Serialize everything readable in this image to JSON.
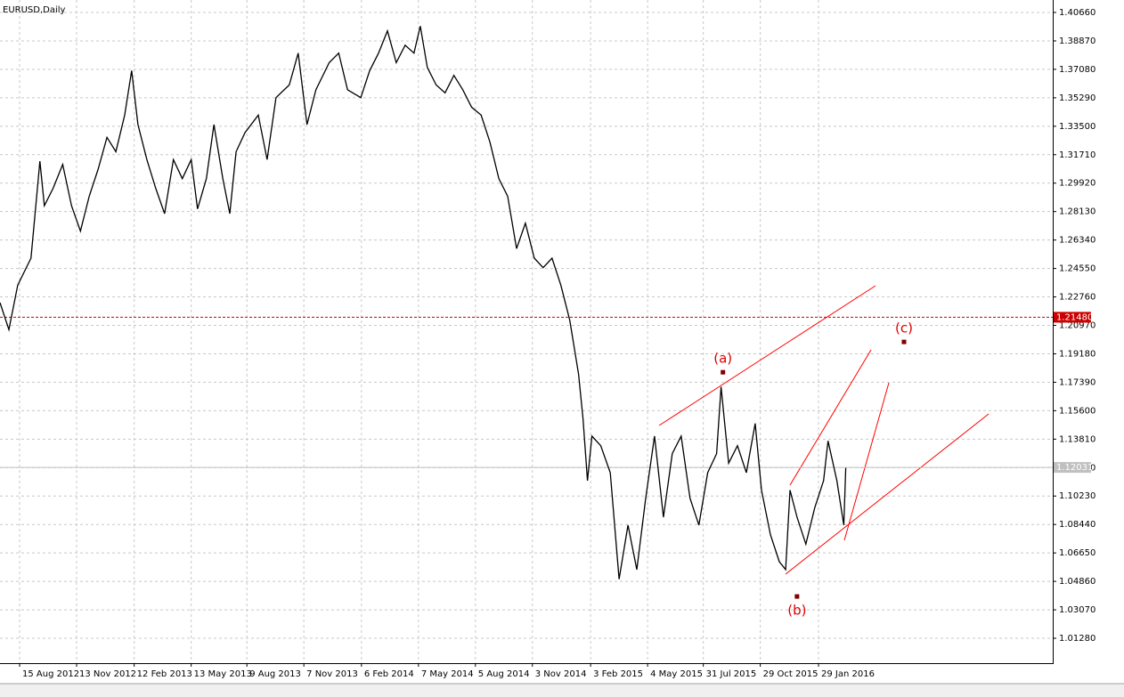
{
  "chart_data": {
    "type": "line",
    "title": "EURUSD,Daily",
    "color": "#000000",
    "grid": true,
    "x": [
      "2012-07-15",
      "2012-07-29",
      "2012-08-12",
      "2012-09-02",
      "2012-09-16",
      "2012-09-23",
      "2012-10-07",
      "2012-10-22",
      "2012-11-05",
      "2012-11-19",
      "2012-12-03",
      "2012-12-17",
      "2012-12-31",
      "2013-01-14",
      "2013-01-28",
      "2013-02-08",
      "2013-02-18",
      "2013-03-04",
      "2013-03-18",
      "2013-04-01",
      "2013-04-15",
      "2013-04-29",
      "2013-05-13",
      "2013-05-23",
      "2013-06-06",
      "2013-06-18",
      "2013-07-02",
      "2013-07-13",
      "2013-07-23",
      "2013-08-06",
      "2013-08-27",
      "2013-09-10",
      "2013-09-24",
      "2013-10-15",
      "2013-10-29",
      "2013-11-12",
      "2013-11-26",
      "2013-12-17",
      "2014-01-01",
      "2014-01-15",
      "2014-02-05",
      "2014-02-19",
      "2014-03-05",
      "2014-03-19",
      "2014-04-02",
      "2014-04-16",
      "2014-04-30",
      "2014-05-10",
      "2014-05-21",
      "2014-06-04",
      "2014-06-18",
      "2014-07-02",
      "2014-07-16",
      "2014-07-30",
      "2014-08-14",
      "2014-08-28",
      "2014-09-11",
      "2014-09-25",
      "2014-10-09",
      "2014-10-23",
      "2014-11-06",
      "2014-11-20",
      "2014-12-04",
      "2014-12-18",
      "2015-01-01",
      "2015-01-15",
      "2015-01-22",
      "2015-01-29",
      "2015-02-05",
      "2015-02-19",
      "2015-03-06",
      "2015-03-20",
      "2015-04-03",
      "2015-04-17",
      "2015-05-01",
      "2015-05-15",
      "2015-05-29",
      "2015-06-12",
      "2015-06-26",
      "2015-07-10",
      "2015-07-24",
      "2015-08-07",
      "2015-08-21",
      "2015-08-28",
      "2015-09-09",
      "2015-09-23",
      "2015-10-07",
      "2015-10-21",
      "2015-10-31",
      "2015-11-14",
      "2015-11-28",
      "2015-12-08",
      "2015-12-15",
      "2015-12-26",
      "2016-01-09",
      "2016-01-23",
      "2016-02-06",
      "2016-02-13",
      "2016-02-27",
      "2016-03-09",
      "2016-03-12"
    ],
    "values": [
      1.224,
      1.207,
      1.235,
      1.252,
      1.313,
      1.285,
      1.296,
      1.311,
      1.285,
      1.269,
      1.291,
      1.308,
      1.328,
      1.319,
      1.342,
      1.37,
      1.336,
      1.314,
      1.296,
      1.28,
      1.314,
      1.302,
      1.314,
      1.283,
      1.302,
      1.336,
      1.302,
      1.28,
      1.319,
      1.331,
      1.342,
      1.314,
      1.353,
      1.361,
      1.381,
      1.336,
      1.358,
      1.375,
      1.381,
      1.358,
      1.353,
      1.37,
      1.381,
      1.395,
      1.375,
      1.386,
      1.381,
      1.398,
      1.372,
      1.361,
      1.356,
      1.367,
      1.358,
      1.347,
      1.342,
      1.325,
      1.302,
      1.291,
      1.258,
      1.274,
      1.252,
      1.246,
      1.252,
      1.235,
      1.213,
      1.179,
      1.151,
      1.112,
      1.14,
      1.134,
      1.117,
      1.05,
      1.084,
      1.056,
      1.101,
      1.14,
      1.089,
      1.129,
      1.14,
      1.101,
      1.084,
      1.117,
      1.129,
      1.171,
      1.123,
      1.134,
      1.117,
      1.148,
      1.106,
      1.078,
      1.061,
      1.056,
      1.106,
      1.089,
      1.072,
      1.095,
      1.112,
      1.137,
      1.112,
      1.084,
      1.12
    ],
    "xlim": [
      "2012-07-15",
      "2017-02-02"
    ],
    "xticks": [
      {
        "value": "2012-08-15",
        "label": "15 Aug 2012"
      },
      {
        "value": "2012-11-13",
        "label": "13 Nov 2012"
      },
      {
        "value": "2013-02-12",
        "label": "12 Feb 2013"
      },
      {
        "value": "2013-05-13",
        "label": "13 May 2013"
      },
      {
        "value": "2013-08-09",
        "label": "9 Aug 2013"
      },
      {
        "value": "2013-11-07",
        "label": "7 Nov 2013"
      },
      {
        "value": "2014-02-06",
        "label": "6 Feb 2014"
      },
      {
        "value": "2014-05-07",
        "label": "7 May 2014"
      },
      {
        "value": "2014-08-05",
        "label": "5 Aug 2014"
      },
      {
        "value": "2014-11-03",
        "label": "3 Nov 2014"
      },
      {
        "value": "2015-02-03",
        "label": "3 Feb 2015"
      },
      {
        "value": "2015-05-04",
        "label": "4 May 2015"
      },
      {
        "value": "2015-07-31",
        "label": "31 Jul 2015"
      },
      {
        "value": "2015-10-29",
        "label": "29 Oct 2015"
      },
      {
        "value": "2016-01-29",
        "label": "29 Jan 2016"
      }
    ],
    "ylim": [
      0.99713,
      1.41444
    ],
    "yticks": [
      {
        "value": 1.4066,
        "label": "1.40660"
      },
      {
        "value": 1.3887,
        "label": "1.38870"
      },
      {
        "value": 1.3708,
        "label": "1.37080"
      },
      {
        "value": 1.3529,
        "label": "1.35290"
      },
      {
        "value": 1.335,
        "label": "1.33500"
      },
      {
        "value": 1.3171,
        "label": "1.31710"
      },
      {
        "value": 1.2992,
        "label": "1.29920"
      },
      {
        "value": 1.2813,
        "label": "1.28130"
      },
      {
        "value": 1.2634,
        "label": "1.26340"
      },
      {
        "value": 1.2455,
        "label": "1.24550"
      },
      {
        "value": 1.2276,
        "label": "1.22760"
      },
      {
        "value": 1.2097,
        "label": "1.20970"
      },
      {
        "value": 1.1918,
        "label": "1.19180"
      },
      {
        "value": 1.1739,
        "label": "1.17390"
      },
      {
        "value": 1.156,
        "label": "1.15600"
      },
      {
        "value": 1.1381,
        "label": "1.13810"
      },
      {
        "value": 1.1202,
        "label": "1.12020"
      },
      {
        "value": 1.1023,
        "label": "1.10230"
      },
      {
        "value": 1.0844,
        "label": "1.08440"
      },
      {
        "value": 1.0665,
        "label": "1.06650"
      },
      {
        "value": 1.0486,
        "label": "1.04860"
      },
      {
        "value": 1.0307,
        "label": "1.03070"
      },
      {
        "value": 1.0128,
        "label": "1.01280"
      }
    ],
    "hlines": [
      {
        "value": 1.2148,
        "label": "1.21480",
        "color": "#cc0000",
        "dashed": true
      },
      {
        "value": 1.12031,
        "label": "1.12031",
        "color": "#c0c0c0",
        "dashed": false
      }
    ],
    "annotations": [
      {
        "text": "(a)",
        "x": "2015-08-31",
        "y": 1.1802,
        "position": "above",
        "color": "#dd0000"
      },
      {
        "text": "(b)",
        "x": "2015-12-26",
        "y": 1.0391,
        "position": "below",
        "color": "#dd0000"
      },
      {
        "text": "(c)",
        "x": "2016-06-12",
        "y": 1.1993,
        "position": "above",
        "color": "#dd0000"
      }
    ]
  }
}
